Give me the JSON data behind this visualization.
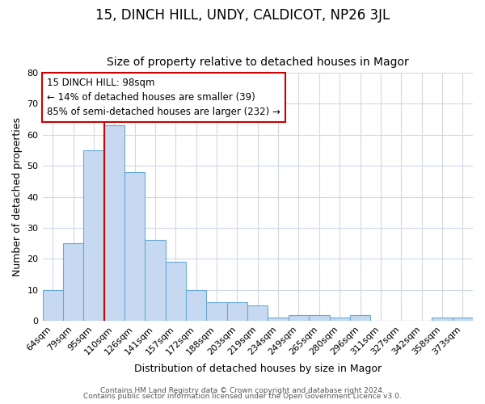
{
  "title": "15, DINCH HILL, UNDY, CALDICOT, NP26 3JL",
  "subtitle": "Size of property relative to detached houses in Magor",
  "xlabel": "Distribution of detached houses by size in Magor",
  "ylabel": "Number of detached properties",
  "categories": [
    "64sqm",
    "79sqm",
    "95sqm",
    "110sqm",
    "126sqm",
    "141sqm",
    "157sqm",
    "172sqm",
    "188sqm",
    "203sqm",
    "219sqm",
    "234sqm",
    "249sqm",
    "265sqm",
    "280sqm",
    "296sqm",
    "311sqm",
    "327sqm",
    "342sqm",
    "358sqm",
    "373sqm"
  ],
  "values": [
    10,
    25,
    55,
    63,
    48,
    26,
    19,
    10,
    6,
    6,
    5,
    1,
    2,
    2,
    1,
    2,
    0,
    0,
    0,
    1,
    1
  ],
  "bar_color": "#c6d9f0",
  "bar_edge_color": "#6aaad4",
  "annotation_line1": "15 DINCH HILL: 98sqm",
  "annotation_line2": "← 14% of detached houses are smaller (39)",
  "annotation_line3": "85% of semi-detached houses are larger (232) →",
  "annotation_box_color": "#ffffff",
  "annotation_box_edge_color": "#cc0000",
  "vline_color": "#cc0000",
  "vline_xindex": 2,
  "ylim": [
    0,
    80
  ],
  "yticks": [
    0,
    10,
    20,
    30,
    40,
    50,
    60,
    70,
    80
  ],
  "background_color": "#ffffff",
  "axes_background": "#ffffff",
  "grid_color": "#d0d8e8",
  "footer_line1": "Contains HM Land Registry data © Crown copyright and database right 2024.",
  "footer_line2": "Contains public sector information licensed under the Open Government Licence v3.0.",
  "title_fontsize": 12,
  "subtitle_fontsize": 10,
  "xlabel_fontsize": 9,
  "ylabel_fontsize": 9,
  "tick_fontsize": 8,
  "footer_fontsize": 6.5,
  "annot_fontsize": 8.5
}
